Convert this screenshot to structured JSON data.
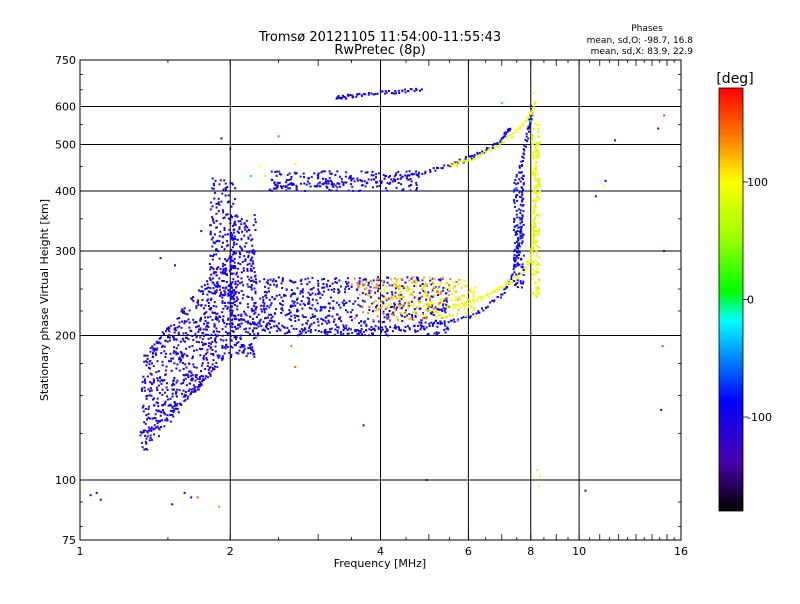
{
  "chart_data": {
    "type": "scatter",
    "title": "Tromsø 20121105 11:54:00-11:55:43",
    "subtitle": "RwPretec (8p)",
    "xlabel": "Frequency [MHz]",
    "ylabel": "Stationary phase Virtual Height [km]",
    "x_scale": "log",
    "y_scale": "log",
    "xlim": [
      1,
      16
    ],
    "ylim": [
      75,
      750
    ],
    "grid": true,
    "x_ticks": [
      {
        "value": 1,
        "label": "1"
      },
      {
        "value": 2,
        "label": "2"
      },
      {
        "value": 4,
        "label": "4"
      },
      {
        "value": 6,
        "label": "6"
      },
      {
        "value": 8,
        "label": "8"
      },
      {
        "value": 10,
        "label": "10"
      },
      {
        "value": 16,
        "label": "16"
      }
    ],
    "y_ticks": [
      {
        "value": 75,
        "label": "75"
      },
      {
        "value": 100,
        "label": "100"
      },
      {
        "value": 200,
        "label": "200"
      },
      {
        "value": 300,
        "label": "300"
      },
      {
        "value": 400,
        "label": "400"
      },
      {
        "value": 500,
        "label": "500"
      },
      {
        "value": 600,
        "label": "600"
      },
      {
        "value": 750,
        "label": "750"
      }
    ],
    "x_grid": [
      1,
      2,
      4,
      6,
      8,
      10,
      16
    ],
    "y_grid": [
      100,
      200,
      300,
      400,
      500,
      600
    ],
    "phase_stats": {
      "heading": "Phases",
      "o_line": "mean, sd,O: -98.7, 16.8",
      "x_line": "mean, sd,X: 83.9, 22.9"
    },
    "colorbar": {
      "title": "[deg]",
      "range": [
        -180,
        180
      ],
      "ticks": [
        {
          "value": 100,
          "label": "100"
        },
        {
          "value": 0,
          "label": "0"
        },
        {
          "value": -100,
          "label": "-100"
        }
      ]
    },
    "series": [
      {
        "mode": "curve",
        "phase": -105,
        "segments": [
          {
            "f": [
              1.88,
              1.95,
              2.05,
              2.25,
              2.6,
              3.0,
              3.5,
              4.0,
              4.5,
              5.0,
              5.5,
              6.0,
              6.5,
              7.0,
              7.3,
              7.5,
              7.6,
              7.7,
              7.72
            ],
            "h": [
              255,
              232,
              218,
              210,
              206,
              205,
              205,
              206,
              207,
              210,
              214,
              219,
              228,
              244,
              262,
              285,
              320,
              380,
              440
            ]
          },
          {
            "f": [
              7.6,
              7.75,
              7.9,
              8.0,
              8.05
            ],
            "h": [
              440,
              480,
              530,
              570,
              600
            ]
          },
          {
            "f": [
              2.45,
              2.8,
              3.2,
              3.6,
              4.0,
              4.5,
              5.0,
              5.5,
              6.0,
              6.4,
              6.8,
              7.1,
              7.3
            ],
            "h": [
              410,
              412,
              415,
              418,
              422,
              430,
              440,
              452,
              468,
              482,
              500,
              520,
              545
            ]
          },
          {
            "f": [
              3.25,
              3.4,
              3.6,
              3.9,
              4.2,
              4.5,
              4.85
            ],
            "h": [
              625,
              628,
              632,
              638,
              642,
              648,
              655
            ]
          },
          {
            "f": [
              1.32,
              1.4,
              1.5,
              1.6,
              1.7,
              1.8
            ],
            "h": [
              125,
              128,
              135,
              145,
              155,
              162
            ]
          }
        ]
      },
      {
        "mode": "curve",
        "phase": 90,
        "segments": [
          {
            "f": [
              5.4,
              5.8,
              6.2,
              6.6,
              7.0,
              7.4,
              7.8,
              8.0,
              8.1,
              8.18,
              8.2,
              8.22
            ],
            "h": [
              228,
              232,
              236,
              243,
              252,
              262,
              275,
              290,
              320,
              380,
              440,
              500
            ]
          },
          {
            "f": [
              5.5,
              5.9,
              6.4,
              6.9,
              7.3,
              7.7,
              8.0,
              8.2
            ],
            "h": [
              450,
              462,
              478,
              498,
              520,
              548,
              580,
              620
            ]
          }
        ]
      },
      {
        "mode": "scatter",
        "phase": -110,
        "points": [
          [
            1.05,
            93
          ],
          [
            1.08,
            94
          ],
          [
            1.1,
            91
          ],
          [
            1.53,
            89
          ],
          [
            1.62,
            94
          ],
          [
            1.67,
            92
          ],
          [
            2.0,
            490
          ],
          [
            1.92,
            515
          ],
          [
            3.7,
            130
          ],
          [
            4.95,
            100
          ],
          [
            10.3,
            95
          ],
          [
            10.8,
            390
          ],
          [
            11.8,
            510
          ],
          [
            14.4,
            540
          ],
          [
            14.8,
            300
          ],
          [
            14.6,
            140
          ],
          [
            11.3,
            420
          ],
          [
            1.45,
            290
          ],
          [
            1.55,
            280
          ],
          [
            1.75,
            330
          ],
          [
            2.05,
            340
          ]
        ]
      },
      {
        "mode": "scatter",
        "phase": 150,
        "points": [
          [
            2.65,
            190
          ],
          [
            2.7,
            172
          ],
          [
            14.7,
            190
          ],
          [
            14.8,
            575
          ],
          [
            1.72,
            92
          ],
          [
            2.5,
            520
          ]
        ]
      },
      {
        "mode": "scatter",
        "phase": 95,
        "points": [
          [
            8.25,
            105
          ],
          [
            8.35,
            102
          ],
          [
            8.3,
            97
          ],
          [
            2.3,
            450
          ],
          [
            2.35,
            430
          ],
          [
            2.7,
            455
          ],
          [
            11.2,
            410
          ],
          [
            8.1,
            640
          ]
        ]
      },
      {
        "mode": "scatter",
        "phase": 10,
        "points": [
          [
            1.9,
            88
          ],
          [
            7.0,
            610
          ],
          [
            2.2,
            430
          ],
          [
            8.0,
            560
          ]
        ]
      }
    ],
    "clouds": [
      {
        "f": [
          1.33,
          2.05
        ],
        "h": [
          125,
          300
        ],
        "n": 700,
        "phase": -110,
        "shape": "e_cloud"
      },
      {
        "f": [
          2.0,
          2.25
        ],
        "h": [
          180,
          360
        ],
        "n": 260,
        "phase": -108,
        "shape": "box"
      },
      {
        "f": [
          1.82,
          2.05
        ],
        "h": [
          240,
          430
        ],
        "n": 160,
        "phase": -110,
        "shape": "box"
      },
      {
        "f": [
          2.2,
          5.5
        ],
        "h": [
          200,
          265
        ],
        "n": 650,
        "phase": -105,
        "shape": "box"
      },
      {
        "f": [
          3.5,
          5.8
        ],
        "h": [
          215,
          265
        ],
        "n": 140,
        "phase": 130,
        "shape": "box"
      },
      {
        "f": [
          4.0,
          6.2
        ],
        "h": [
          218,
          260
        ],
        "n": 160,
        "phase": 95,
        "shape": "box"
      },
      {
        "f": [
          2.4,
          4.8
        ],
        "h": [
          400,
          440
        ],
        "n": 180,
        "phase": -105,
        "shape": "box"
      },
      {
        "f": [
          7.4,
          7.75
        ],
        "h": [
          250,
          440
        ],
        "n": 120,
        "phase": -100,
        "shape": "box"
      },
      {
        "f": [
          8.05,
          8.35
        ],
        "h": [
          240,
          560
        ],
        "n": 160,
        "phase": 85,
        "shape": "box"
      }
    ]
  }
}
